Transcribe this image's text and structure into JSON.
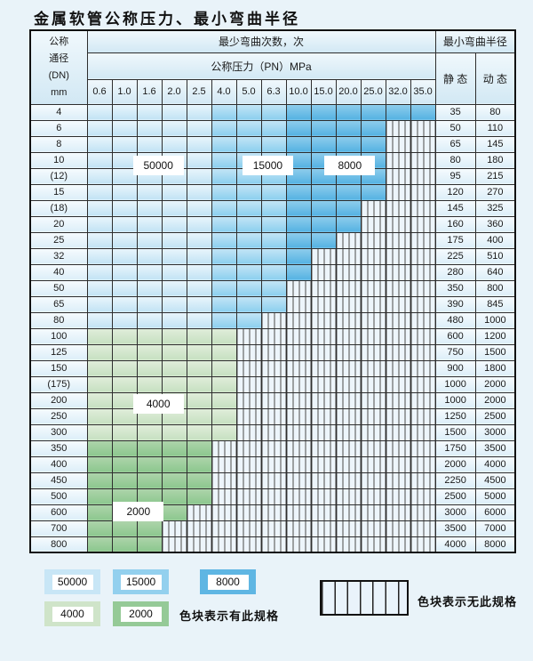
{
  "title": "金属软管公称压力、最小弯曲半径",
  "table": {
    "corner_lines": [
      "公称",
      "通径",
      "(DN)",
      "mm"
    ],
    "bend_cycles_header": "最少弯曲次数，次",
    "pressure_header": "公称压力（PN）MPa",
    "radius_header": "最小弯曲半径",
    "static_header": "静 态",
    "dynamic_header": "动 态",
    "pressure_columns": [
      "0.6",
      "1.0",
      "1.6",
      "2.0",
      "2.5",
      "4.0",
      "5.0",
      "6.3",
      "10.0",
      "15.0",
      "20.0",
      "25.0",
      "32.0",
      "35.0"
    ],
    "blue_zone_columns": {
      "cycles_50000": [
        0,
        4
      ],
      "cycles_15000": [
        5,
        7
      ],
      "cycles_8000": [
        8,
        13
      ]
    },
    "rows": [
      {
        "dn": "4",
        "colored": 14,
        "palette": "blue",
        "static": "35",
        "dynamic": "80"
      },
      {
        "dn": "6",
        "colored": 12,
        "palette": "blue",
        "static": "50",
        "dynamic": "110"
      },
      {
        "dn": "8",
        "colored": 12,
        "palette": "blue",
        "static": "65",
        "dynamic": "145"
      },
      {
        "dn": "10",
        "colored": 12,
        "palette": "blue",
        "static": "80",
        "dynamic": "180"
      },
      {
        "dn": "(12)",
        "colored": 12,
        "palette": "blue",
        "static": "95",
        "dynamic": "215"
      },
      {
        "dn": "15",
        "colored": 12,
        "palette": "blue",
        "static": "120",
        "dynamic": "270"
      },
      {
        "dn": "(18)",
        "colored": 11,
        "palette": "blue",
        "static": "145",
        "dynamic": "325"
      },
      {
        "dn": "20",
        "colored": 11,
        "palette": "blue",
        "static": "160",
        "dynamic": "360"
      },
      {
        "dn": "25",
        "colored": 10,
        "palette": "blue",
        "static": "175",
        "dynamic": "400"
      },
      {
        "dn": "32",
        "colored": 9,
        "palette": "blue",
        "static": "225",
        "dynamic": "510"
      },
      {
        "dn": "40",
        "colored": 9,
        "palette": "blue",
        "static": "280",
        "dynamic": "640"
      },
      {
        "dn": "50",
        "colored": 8,
        "palette": "blue",
        "static": "350",
        "dynamic": "800"
      },
      {
        "dn": "65",
        "colored": 8,
        "palette": "blue",
        "static": "390",
        "dynamic": "845"
      },
      {
        "dn": "80",
        "colored": 7,
        "palette": "blue",
        "static": "480",
        "dynamic": "1000"
      },
      {
        "dn": "100",
        "colored": 6,
        "palette": "green4000",
        "static": "600",
        "dynamic": "1200"
      },
      {
        "dn": "125",
        "colored": 6,
        "palette": "green4000",
        "static": "750",
        "dynamic": "1500"
      },
      {
        "dn": "150",
        "colored": 6,
        "palette": "green4000",
        "static": "900",
        "dynamic": "1800"
      },
      {
        "dn": "(175)",
        "colored": 6,
        "palette": "green4000",
        "static": "1000",
        "dynamic": "2000"
      },
      {
        "dn": "200",
        "colored": 6,
        "palette": "green4000",
        "static": "1000",
        "dynamic": "2000"
      },
      {
        "dn": "250",
        "colored": 6,
        "palette": "green4000",
        "static": "1250",
        "dynamic": "2500"
      },
      {
        "dn": "300",
        "colored": 6,
        "palette": "green4000",
        "static": "1500",
        "dynamic": "3000"
      },
      {
        "dn": "350",
        "colored": 5,
        "palette": "green2000",
        "static": "1750",
        "dynamic": "3500"
      },
      {
        "dn": "400",
        "colored": 5,
        "palette": "green2000",
        "static": "2000",
        "dynamic": "4000"
      },
      {
        "dn": "450",
        "colored": 5,
        "palette": "green2000",
        "static": "2250",
        "dynamic": "4500"
      },
      {
        "dn": "500",
        "colored": 5,
        "palette": "green2000",
        "static": "2500",
        "dynamic": "5000"
      },
      {
        "dn": "600",
        "colored": 4,
        "palette": "green2000",
        "static": "3000",
        "dynamic": "6000"
      },
      {
        "dn": "700",
        "colored": 3,
        "palette": "green2000",
        "static": "3500",
        "dynamic": "7000"
      },
      {
        "dn": "800",
        "colored": 3,
        "palette": "green2000",
        "static": "4000",
        "dynamic": "8000"
      }
    ],
    "cycle_labels": [
      {
        "text": "50000",
        "cx_col": 2.9,
        "cy_row": 3.9
      },
      {
        "text": "15000",
        "cx_col": 7.3,
        "cy_row": 3.9
      },
      {
        "text": "8000",
        "cx_col": 10.6,
        "cy_row": 3.9
      },
      {
        "text": "4000",
        "cx_col": 2.9,
        "cy_row": 18.8
      },
      {
        "text": "2000",
        "cx_col": 2.1,
        "cy_row": 25.5
      }
    ]
  },
  "legend": {
    "items": [
      {
        "value": "50000",
        "palette": "blue_50000"
      },
      {
        "value": "15000",
        "palette": "blue_15000"
      },
      {
        "value": "8000",
        "palette": "blue_8000"
      },
      {
        "value": "4000",
        "palette": "green_4000"
      },
      {
        "value": "2000",
        "palette": "green_2000"
      }
    ],
    "has_spec_text": "色块表示有此规格",
    "no_spec_text": "色块表示无此规格"
  },
  "colors": {
    "blue_50000": "#c8e6f6",
    "blue_15000": "#93d0ee",
    "blue_8000": "#5fb6e3",
    "green_4000": "#cfe4c9",
    "green_2000": "#95ca97",
    "no_spec_bg": "#edf5fb",
    "grid": "#2e2e2e",
    "page_bg": "#e9f3f9"
  }
}
